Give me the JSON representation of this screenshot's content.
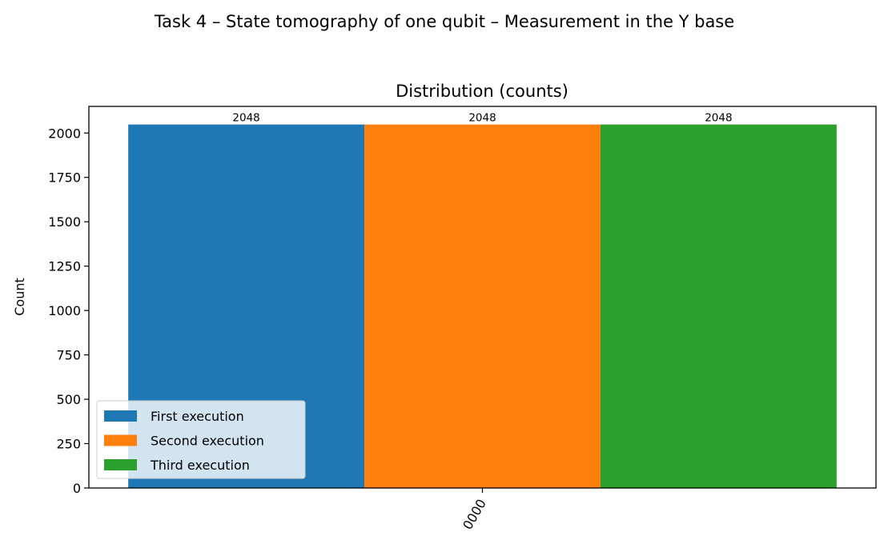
{
  "figure": {
    "suptitle": "Task 4 – State tomography of one qubit – Measurement in the Y base"
  },
  "chart_data": {
    "type": "bar",
    "title": "Distribution (counts)",
    "xlabel": "",
    "ylabel": "Count",
    "categories": [
      "0000"
    ],
    "series": [
      {
        "name": "First execution",
        "values": [
          2048
        ],
        "color": "#1f77b4"
      },
      {
        "name": "Second execution",
        "values": [
          2048
        ],
        "color": "#ff7f0e"
      },
      {
        "name": "Third execution",
        "values": [
          2048
        ],
        "color": "#2ca02c"
      }
    ],
    "ylim": [
      0,
      2150
    ],
    "yticks": [
      0,
      250,
      500,
      750,
      1000,
      1250,
      1500,
      1750,
      2000
    ],
    "xtick_rotation": 60,
    "data_labels": [
      "2048",
      "2048",
      "2048"
    ],
    "grid": false,
    "legend": {
      "placement": "lower-left"
    }
  }
}
